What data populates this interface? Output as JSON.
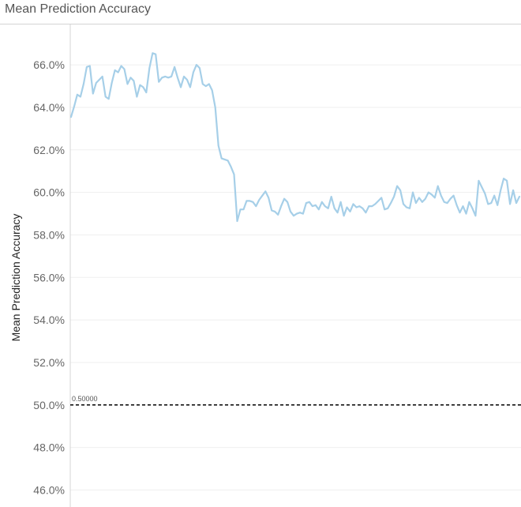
{
  "sheet": {
    "title": "Mean Prediction Accuracy"
  },
  "colors": {
    "series": "#a6cfe8",
    "grid": "#efefef",
    "axis": "#d4d4d4",
    "reference": "#000000"
  },
  "chart_data": {
    "type": "line",
    "title": "Mean Prediction Accuracy",
    "ylabel": "Mean Prediction Accuracy",
    "xlabel": "",
    "ylim": [
      45.2,
      67.9
    ],
    "yticks": [
      46,
      48,
      50,
      52,
      54,
      56,
      58,
      60,
      62,
      64,
      66
    ],
    "ytick_labels": [
      "46.0%",
      "48.0%",
      "50.0%",
      "52.0%",
      "54.0%",
      "56.0%",
      "58.0%",
      "60.0%",
      "62.0%",
      "64.0%",
      "66.0%"
    ],
    "grid": true,
    "reference_line": {
      "value": 50.0,
      "label": "0.50000",
      "style": "dashed"
    },
    "series": [
      {
        "values": [
          63.55,
          64.05,
          64.6,
          64.5,
          65.1,
          65.9,
          65.95,
          64.65,
          65.15,
          65.3,
          65.45,
          64.5,
          64.4,
          65.15,
          65.75,
          65.65,
          65.95,
          65.8,
          65.1,
          65.4,
          65.25,
          64.5,
          65.05,
          64.95,
          64.7,
          65.85,
          66.55,
          66.5,
          65.2,
          65.4,
          65.45,
          65.4,
          65.45,
          65.9,
          65.4,
          64.95,
          65.45,
          65.3,
          64.95,
          65.65,
          66.0,
          65.85,
          65.1,
          65.0,
          65.1,
          64.8,
          64.0,
          62.2,
          61.6,
          61.55,
          61.5,
          61.2,
          60.85,
          58.65,
          59.2,
          59.2,
          59.6,
          59.6,
          59.55,
          59.35,
          59.65,
          59.85,
          60.05,
          59.75,
          59.15,
          59.1,
          58.95,
          59.35,
          59.7,
          59.55,
          59.1,
          58.9,
          59.0,
          59.05,
          59.0,
          59.5,
          59.55,
          59.35,
          59.4,
          59.2,
          59.55,
          59.35,
          59.25,
          59.8,
          59.25,
          59.05,
          59.55,
          58.9,
          59.3,
          59.1,
          59.45,
          59.3,
          59.35,
          59.25,
          59.05,
          59.35,
          59.35,
          59.45,
          59.6,
          59.75,
          59.2,
          59.25,
          59.5,
          59.8,
          60.3,
          60.1,
          59.45,
          59.3,
          59.25,
          60.0,
          59.5,
          59.75,
          59.55,
          59.7,
          60.0,
          59.9,
          59.75,
          60.3,
          59.85,
          59.55,
          59.5,
          59.7,
          59.85,
          59.4,
          59.05,
          59.35,
          59.0,
          59.55,
          59.25,
          58.9,
          60.55,
          60.25,
          59.95,
          59.45,
          59.5,
          59.85,
          59.4,
          60.1,
          60.65,
          60.55,
          59.45,
          60.1,
          59.5,
          59.8
        ]
      }
    ]
  }
}
